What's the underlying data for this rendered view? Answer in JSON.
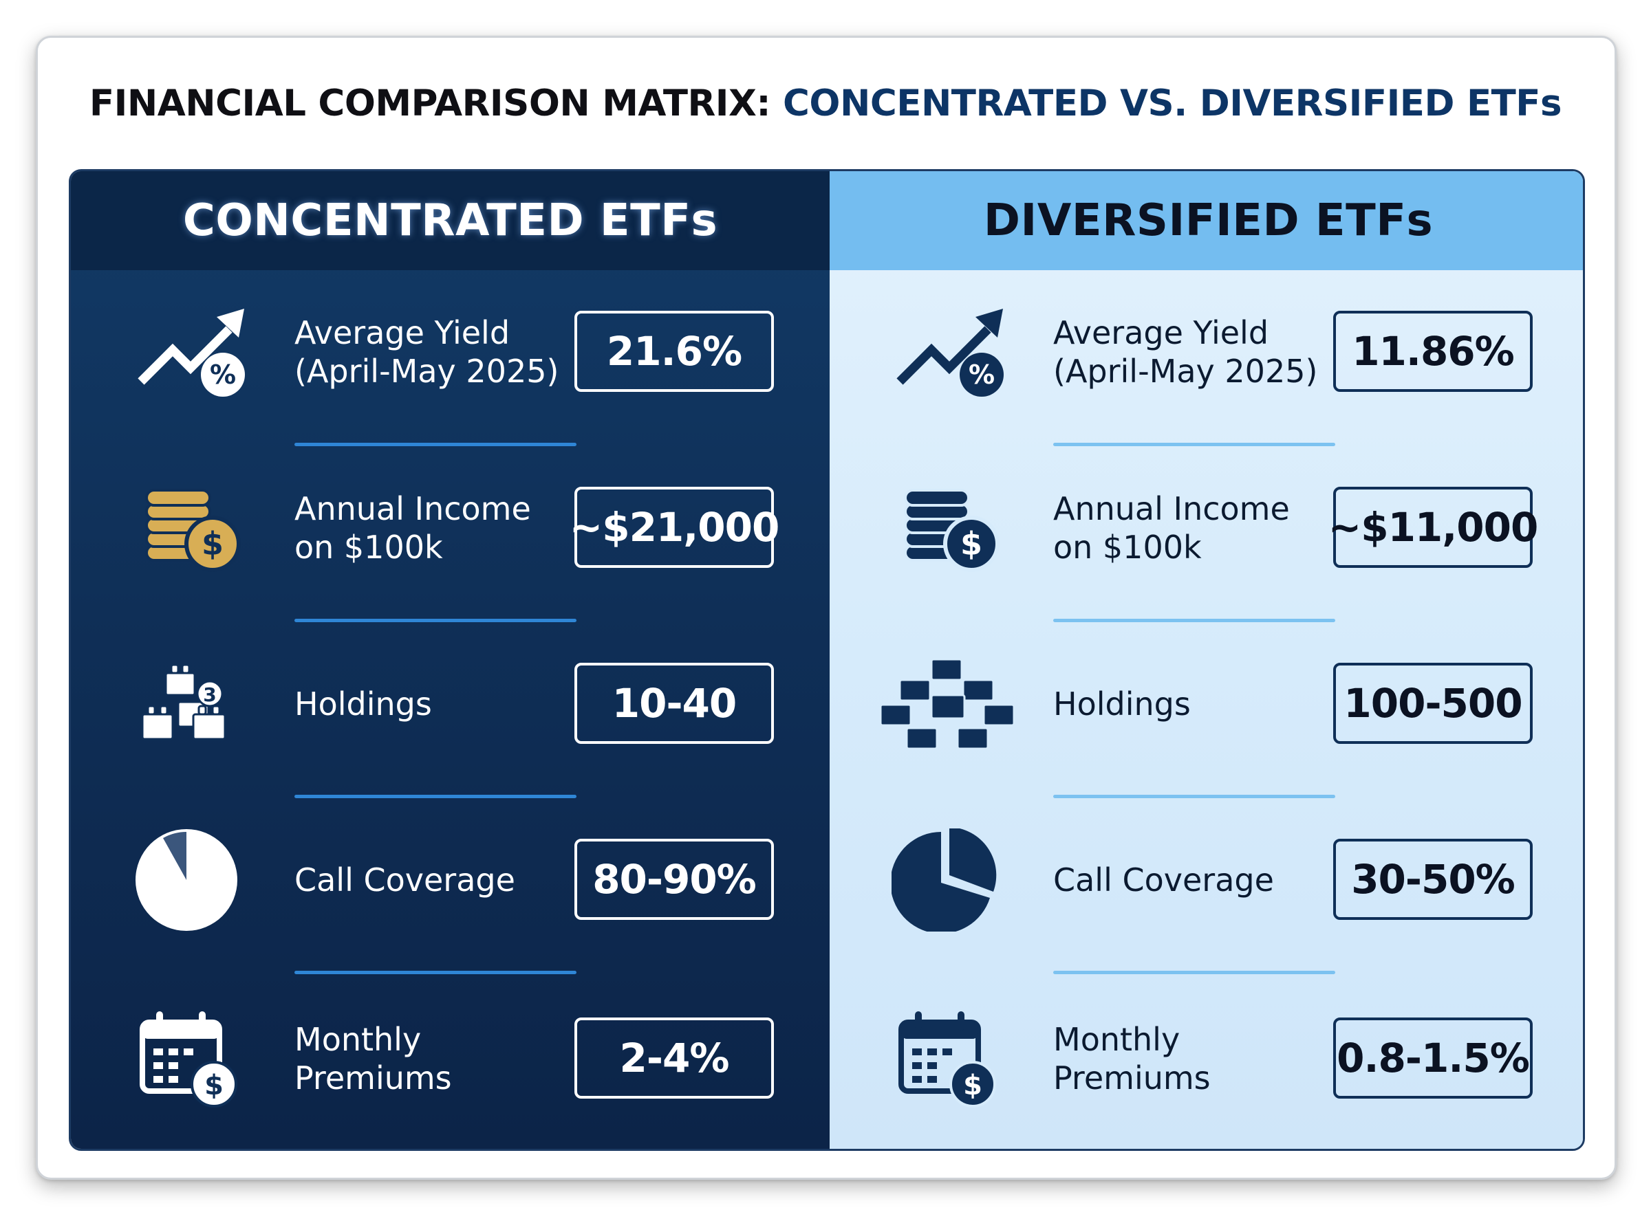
{
  "title": {
    "prefix": "FINANCIAL COMPARISON MATRIX:",
    "accent": "CONCENTRATED VS. DIVERSIFIED ETFs"
  },
  "colors": {
    "concentrated_bg": "#0f2f57",
    "concentrated_header": "#0b2648",
    "diversified_bg": "#d6ebfb",
    "diversified_header": "#74bdf0",
    "gold": "#d8ae55",
    "accent_navy": "#0d3566"
  },
  "concentrated": {
    "heading": "CONCENTRATED ETFs",
    "rows": [
      {
        "icon": "trend-up-percent-icon",
        "label_lines": [
          "Average Yield",
          "(April-May 2025)"
        ],
        "value": "21.6%"
      },
      {
        "icon": "gold-coins-dollar-icon",
        "label_lines": [
          "Annual Income",
          "on $100k"
        ],
        "value": "~$21,000"
      },
      {
        "icon": "few-blocks-icon",
        "label_lines": [
          "Holdings"
        ],
        "value": "10-40"
      },
      {
        "icon": "pie-chart-icon",
        "label_lines": [
          "Call Coverage"
        ],
        "value": "80-90%"
      },
      {
        "icon": "calendar-dollar-icon",
        "label_lines": [
          "Monthly",
          "Premiums"
        ],
        "value": "2-4%"
      }
    ]
  },
  "diversified": {
    "heading": "DIVERSIFIED ETFs",
    "rows": [
      {
        "icon": "trend-up-percent-icon",
        "label_lines": [
          "Average Yield",
          "(April-May 2025)"
        ],
        "value": "11.86%"
      },
      {
        "icon": "coin-stack-dollar-icon",
        "label_lines": [
          "Annual Income",
          "on $100k"
        ],
        "value": "~$11,000"
      },
      {
        "icon": "many-blocks-icon",
        "label_lines": [
          "Holdings"
        ],
        "value": "100-500"
      },
      {
        "icon": "pie-chart-icon",
        "label_lines": [
          "Call Coverage"
        ],
        "value": "30-50%"
      },
      {
        "icon": "calendar-dollar-icon",
        "label_lines": [
          "Monthly",
          "Premiums"
        ],
        "value": "0.8-1.5%"
      }
    ]
  }
}
